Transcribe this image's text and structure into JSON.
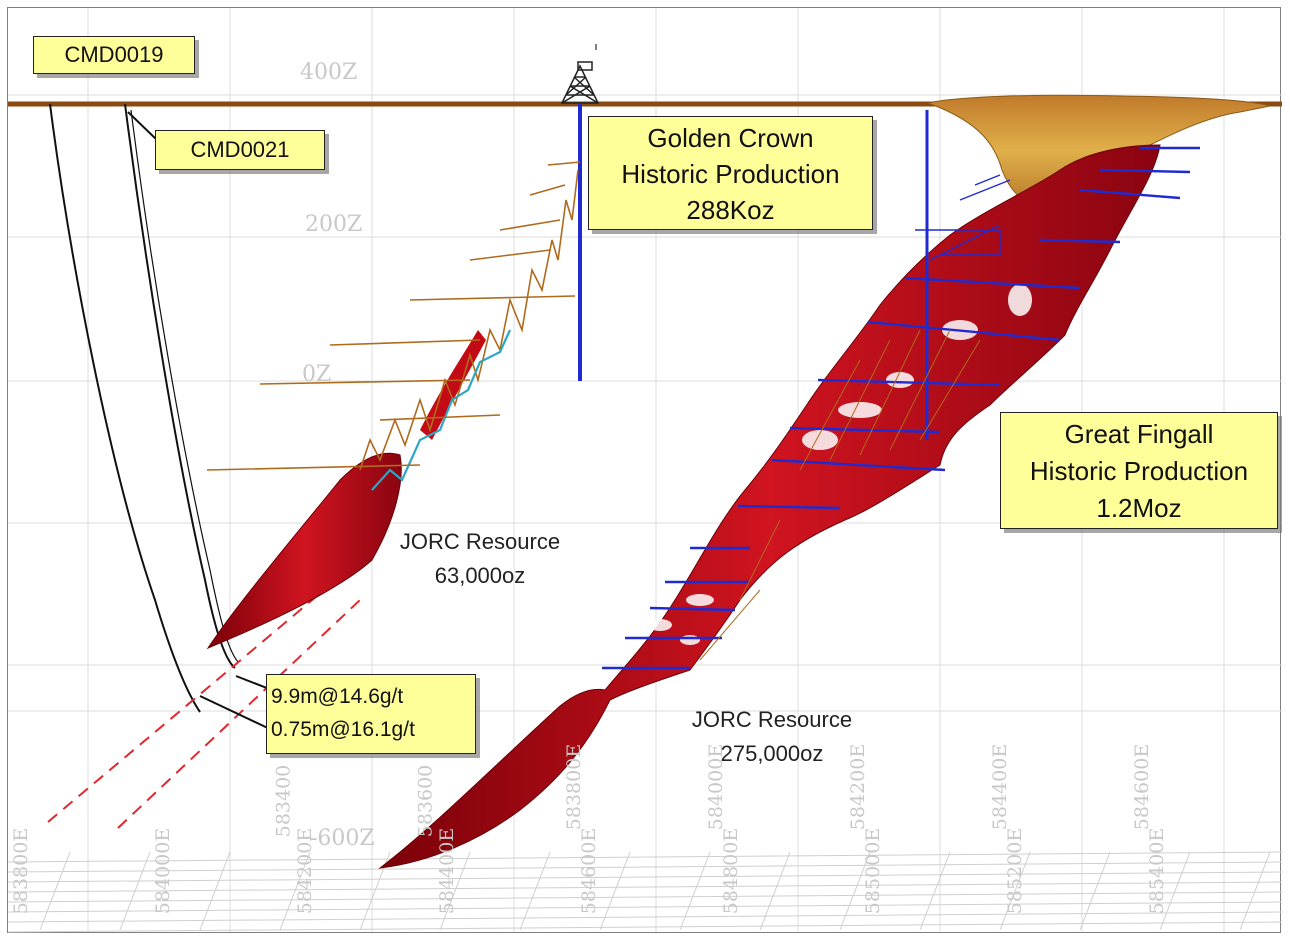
{
  "rl_labels": [
    "400Z",
    "200Z",
    "0Z",
    "-600Z"
  ],
  "easting_labels": [
    "583800E",
    "584000E",
    "584200E",
    "584400E",
    "584600E",
    "584800E",
    "585000E",
    "585200E",
    "585400E",
    "583400",
    "583600",
    "583800E",
    "584000E",
    "584200E",
    "584400E",
    "584600E"
  ],
  "collars": {
    "hole_1": "CMD0019",
    "hole_2": "CMD0021"
  },
  "golden_crown": {
    "line1": "Golden Crown",
    "line2": "Historic Production",
    "line3": "288Koz"
  },
  "great_fingall": {
    "line1": "Great Fingall",
    "line2": "Historic Production",
    "line3": "1.2Moz"
  },
  "resource_west": {
    "line1": "JORC Resource",
    "line2": "63,000oz"
  },
  "resource_east": {
    "line1": "JORC Resource",
    "line2": "275,000oz"
  },
  "intercepts": {
    "upper": "9.9m@14.6g/t",
    "lower": "0.75m@16.1g/t"
  },
  "colors": {
    "surface": "#8b4a10",
    "lode": "#c40a14",
    "workings": "#1f2bd0",
    "development": "#b06a1c",
    "drive": "#2aa7c4",
    "pit": "#d49a3a",
    "callout": "#ffff99"
  }
}
